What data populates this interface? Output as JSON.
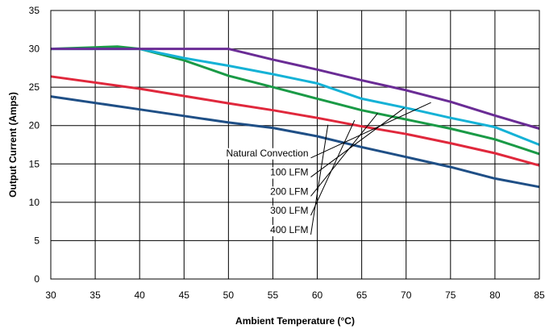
{
  "chart_data": {
    "type": "line",
    "title": "",
    "xlabel": "Ambient Temperature (°C)",
    "ylabel": "Output Current (Amps)",
    "xlim": [
      30,
      85
    ],
    "ylim": [
      0,
      35
    ],
    "xticks": [
      30,
      35,
      40,
      45,
      50,
      55,
      60,
      65,
      70,
      75,
      80,
      85
    ],
    "yticks": [
      0,
      5,
      10,
      15,
      20,
      25,
      30,
      35
    ],
    "grid": true,
    "legend": "annotations",
    "series": [
      {
        "name": "Natural Convection",
        "color": "#1f4f86",
        "x": [
          30,
          40,
          50,
          55,
          60,
          65,
          70,
          75,
          80,
          85
        ],
        "y": [
          23.8,
          22.1,
          20.4,
          19.7,
          18.6,
          17.2,
          15.9,
          14.6,
          13.1,
          12.0
        ]
      },
      {
        "name": "100 LFM",
        "color": "#e0283c",
        "x": [
          30,
          40,
          50,
          55,
          60,
          65,
          70,
          75,
          80,
          85
        ],
        "y": [
          26.4,
          24.8,
          22.9,
          22.0,
          21.0,
          19.9,
          18.9,
          17.7,
          16.4,
          14.8
        ]
      },
      {
        "name": "200 LFM",
        "color": "#1a9a46",
        "x": [
          30,
          35,
          37.5,
          40,
          45,
          50,
          55,
          60,
          65,
          70,
          75,
          80,
          85
        ],
        "y": [
          30.0,
          30.2,
          30.3,
          30.0,
          28.5,
          26.5,
          25.0,
          23.5,
          22.0,
          20.8,
          19.6,
          18.2,
          16.3
        ]
      },
      {
        "name": "300 LFM",
        "color": "#15b2d6",
        "x": [
          30,
          40,
          45,
          50,
          55,
          60,
          65,
          70,
          75,
          80,
          85
        ],
        "y": [
          30.0,
          30.0,
          28.8,
          27.8,
          26.7,
          25.5,
          23.5,
          22.3,
          21.0,
          19.8,
          17.5
        ]
      },
      {
        "name": "400 LFM",
        "color": "#6a2c95",
        "x": [
          30,
          40,
          50,
          55,
          60,
          65,
          70,
          75,
          80,
          85
        ],
        "y": [
          30.0,
          30.0,
          30.0,
          28.6,
          27.3,
          25.9,
          24.6,
          23.1,
          21.3,
          19.6
        ]
      }
    ],
    "annotations": [
      {
        "text": "Natural Convection",
        "label_at": [
          59.0,
          16.0
        ],
        "points_to": [
          72.8,
          23.0
        ]
      },
      {
        "text": "100 LFM",
        "label_at": [
          59.0,
          13.5
        ],
        "points_to": [
          69.8,
          22.3
        ]
      },
      {
        "text": "200 LFM",
        "label_at": [
          59.0,
          11.0
        ],
        "points_to": [
          66.8,
          21.6
        ]
      },
      {
        "text": "300 LFM",
        "label_at": [
          59.0,
          8.5
        ],
        "points_to": [
          64.2,
          20.7
        ]
      },
      {
        "text": "400 LFM",
        "label_at": [
          59.0,
          6.0
        ],
        "points_to": [
          61.2,
          20.1
        ]
      }
    ]
  }
}
